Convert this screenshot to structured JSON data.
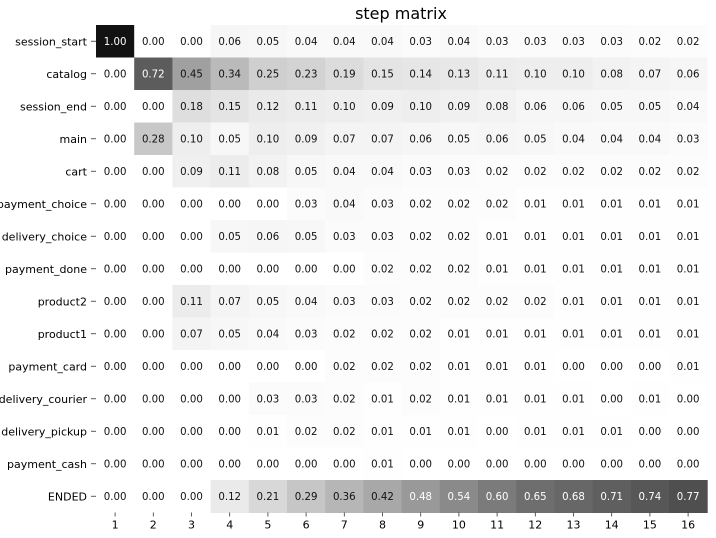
{
  "chart_data": {
    "type": "heatmap",
    "title": "step matrix",
    "xlabel": "",
    "ylabel": "",
    "grid": false,
    "colorscale": {
      "low": "#ffffff",
      "high": "#000000"
    },
    "columns": [
      "1",
      "2",
      "3",
      "4",
      "5",
      "6",
      "7",
      "8",
      "9",
      "10",
      "11",
      "12",
      "13",
      "14",
      "15",
      "16"
    ],
    "rows": [
      "session_start",
      "catalog",
      "session_end",
      "main",
      "cart",
      "payment_choice",
      "delivery_choice",
      "payment_done",
      "product2",
      "product1",
      "payment_card",
      "delivery_courier",
      "delivery_pickup",
      "payment_cash",
      "ENDED"
    ],
    "values": [
      [
        1.0,
        0.0,
        0.0,
        0.06,
        0.05,
        0.04,
        0.04,
        0.04,
        0.03,
        0.04,
        0.03,
        0.03,
        0.03,
        0.03,
        0.02,
        0.02
      ],
      [
        0.0,
        0.72,
        0.45,
        0.34,
        0.25,
        0.23,
        0.19,
        0.15,
        0.14,
        0.13,
        0.11,
        0.1,
        0.1,
        0.08,
        0.07,
        0.06
      ],
      [
        0.0,
        0.0,
        0.18,
        0.15,
        0.12,
        0.11,
        0.1,
        0.09,
        0.1,
        0.09,
        0.08,
        0.06,
        0.06,
        0.05,
        0.05,
        0.04
      ],
      [
        0.0,
        0.28,
        0.1,
        0.05,
        0.1,
        0.09,
        0.07,
        0.07,
        0.06,
        0.05,
        0.06,
        0.05,
        0.04,
        0.04,
        0.04,
        0.03
      ],
      [
        0.0,
        0.0,
        0.09,
        0.11,
        0.08,
        0.05,
        0.04,
        0.04,
        0.03,
        0.03,
        0.02,
        0.02,
        0.02,
        0.02,
        0.02,
        0.02
      ],
      [
        0.0,
        0.0,
        0.0,
        0.0,
        0.0,
        0.03,
        0.04,
        0.03,
        0.02,
        0.02,
        0.02,
        0.01,
        0.01,
        0.01,
        0.01,
        0.01
      ],
      [
        0.0,
        0.0,
        0.0,
        0.05,
        0.06,
        0.05,
        0.03,
        0.03,
        0.02,
        0.02,
        0.01,
        0.01,
        0.01,
        0.01,
        0.01,
        0.01
      ],
      [
        0.0,
        0.0,
        0.0,
        0.0,
        0.0,
        0.0,
        0.0,
        0.02,
        0.02,
        0.02,
        0.01,
        0.01,
        0.01,
        0.01,
        0.01,
        0.01
      ],
      [
        0.0,
        0.0,
        0.11,
        0.07,
        0.05,
        0.04,
        0.03,
        0.03,
        0.02,
        0.02,
        0.02,
        0.02,
        0.01,
        0.01,
        0.01,
        0.01
      ],
      [
        0.0,
        0.0,
        0.07,
        0.05,
        0.04,
        0.03,
        0.02,
        0.02,
        0.02,
        0.01,
        0.01,
        0.01,
        0.01,
        0.01,
        0.01,
        0.01
      ],
      [
        0.0,
        0.0,
        0.0,
        0.0,
        0.0,
        0.0,
        0.02,
        0.02,
        0.02,
        0.01,
        0.01,
        0.01,
        0.0,
        0.0,
        0.0,
        0.01
      ],
      [
        0.0,
        0.0,
        0.0,
        0.0,
        0.03,
        0.03,
        0.02,
        0.01,
        0.02,
        0.01,
        0.01,
        0.01,
        0.01,
        0.0,
        0.01,
        0.0
      ],
      [
        0.0,
        0.0,
        0.0,
        0.0,
        0.01,
        0.02,
        0.02,
        0.01,
        0.01,
        0.01,
        0.0,
        0.01,
        0.01,
        0.01,
        0.0,
        0.0
      ],
      [
        0.0,
        0.0,
        0.0,
        0.0,
        0.0,
        0.0,
        0.0,
        0.01,
        0.0,
        0.0,
        0.0,
        0.0,
        0.0,
        0.0,
        0.0,
        0.0
      ],
      [
        0.0,
        0.0,
        0.0,
        0.12,
        0.21,
        0.29,
        0.36,
        0.42,
        0.48,
        0.54,
        0.6,
        0.65,
        0.68,
        0.71,
        0.74,
        0.77
      ]
    ]
  }
}
